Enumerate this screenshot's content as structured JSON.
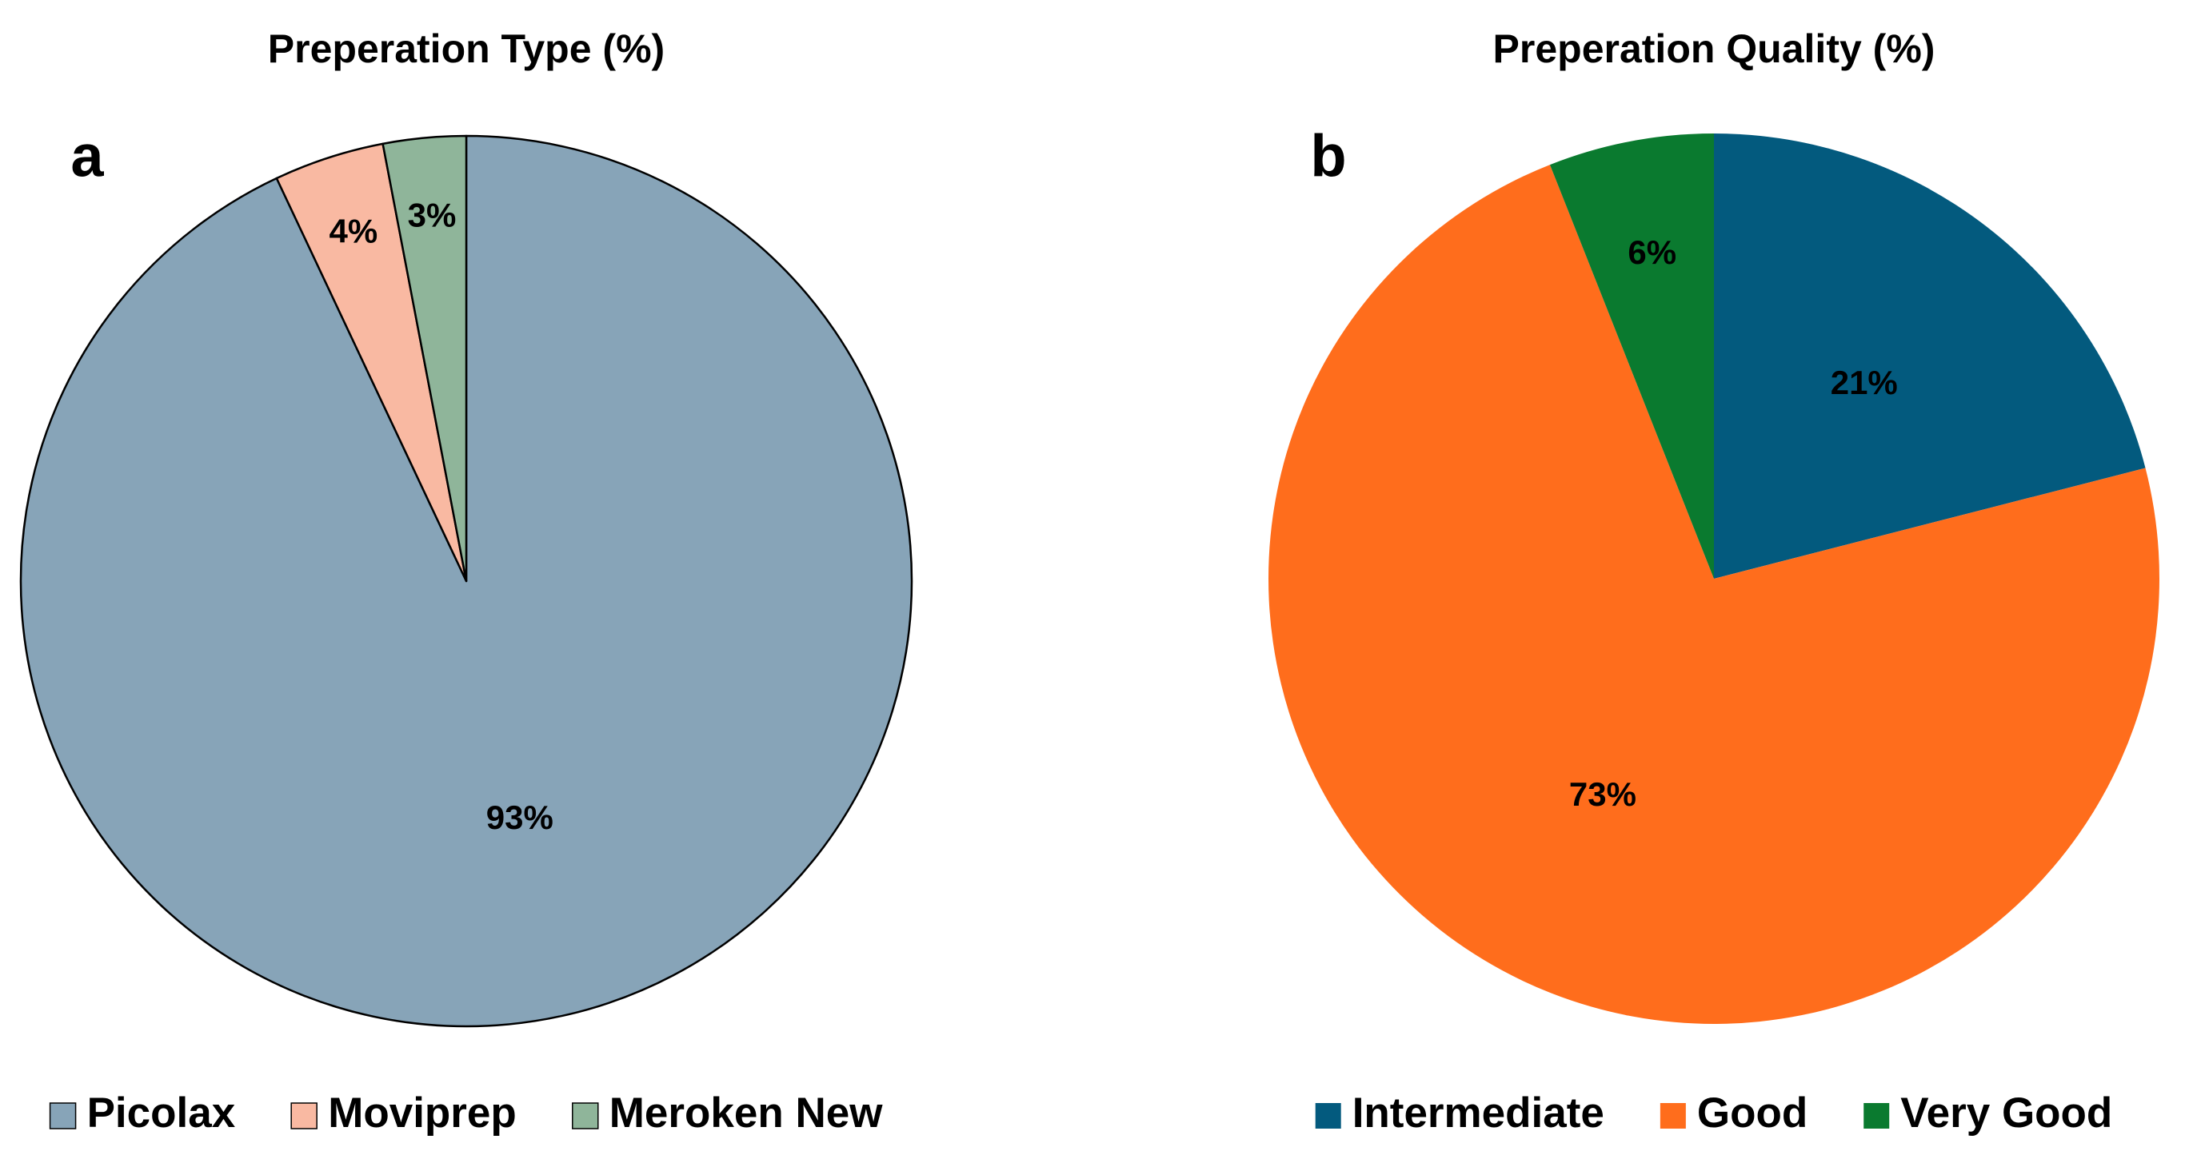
{
  "chart_data": [
    {
      "type": "pie",
      "title": "Preperation Type (%)",
      "panel_label": "a",
      "categories": [
        "Picolax",
        "Moviprep",
        "Meroken New"
      ],
      "values": [
        93,
        4,
        3
      ],
      "value_labels": [
        "93%",
        "4%",
        "3%"
      ],
      "colors": [
        "#87a4b8",
        "#f9b9a2",
        "#8fb59a"
      ],
      "edgecolor": "#000000"
    },
    {
      "type": "pie",
      "title": "Preperation Quality (%)",
      "panel_label": "b",
      "categories": [
        "Intermediate",
        "Good",
        "Very Good"
      ],
      "values": [
        21,
        73,
        6
      ],
      "value_labels": [
        "21%",
        "73%",
        "6%"
      ],
      "colors": [
        "#035a7e",
        "#ff6d1c",
        "#0a7a2f"
      ]
    }
  ]
}
